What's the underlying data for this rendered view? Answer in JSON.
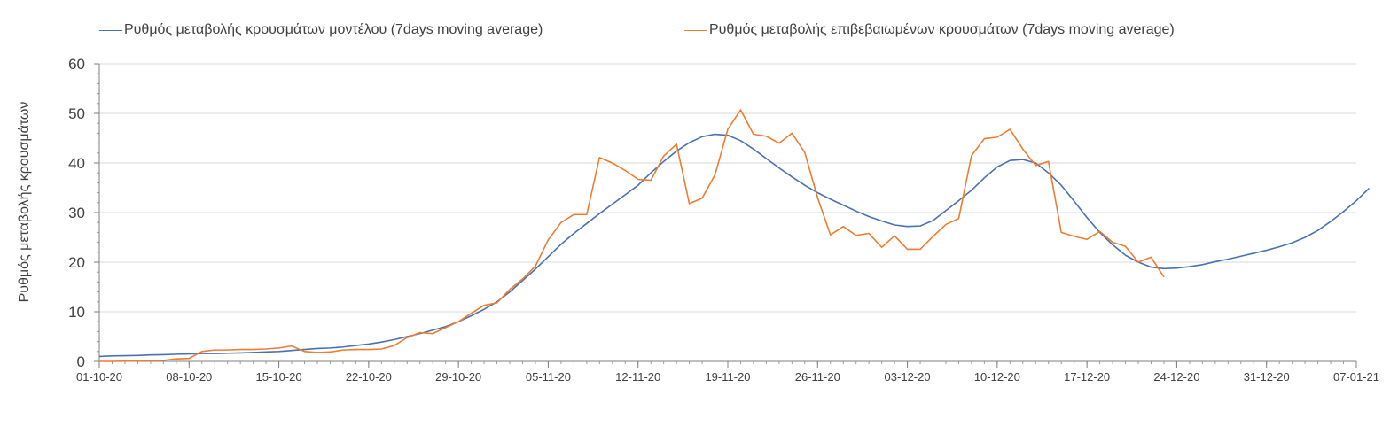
{
  "chart_data": {
    "type": "line",
    "ylabel": "Ρυθμός μεταβολής κρουσμάτων",
    "xlabel": "",
    "ylim": [
      0,
      60
    ],
    "yticks": [
      0,
      10,
      20,
      30,
      40,
      50,
      60
    ],
    "xlim": [
      0,
      98
    ],
    "xticks": [
      {
        "x": 0,
        "label": "01-10-20"
      },
      {
        "x": 7,
        "label": "08-10-20"
      },
      {
        "x": 14,
        "label": "15-10-20"
      },
      {
        "x": 21,
        "label": "22-10-20"
      },
      {
        "x": 28,
        "label": "29-10-20"
      },
      {
        "x": 35,
        "label": "05-11-20"
      },
      {
        "x": 42,
        "label": "12-11-20"
      },
      {
        "x": 49,
        "label": "19-11-20"
      },
      {
        "x": 56,
        "label": "26-11-20"
      },
      {
        "x": 63,
        "label": "03-12-20"
      },
      {
        "x": 70,
        "label": "10-12-20"
      },
      {
        "x": 77,
        "label": "17-12-20"
      },
      {
        "x": 84,
        "label": "24-12-20"
      },
      {
        "x": 91,
        "label": "31-12-20"
      },
      {
        "x": 98,
        "label": "07-01-21"
      }
    ],
    "grid": "horizontal",
    "legend_position": "top",
    "series": [
      {
        "name": "Ρυθμός μεταβολής κρουσμάτων μοντέλου (7days moving average)",
        "color": "#4a72b0",
        "points": [
          [
            0,
            1.0
          ],
          [
            1,
            1.1
          ],
          [
            2,
            1.15
          ],
          [
            3,
            1.2
          ],
          [
            4,
            1.3
          ],
          [
            5,
            1.35
          ],
          [
            6,
            1.45
          ],
          [
            7,
            1.5
          ],
          [
            8,
            1.6
          ],
          [
            9,
            1.6
          ],
          [
            10,
            1.65
          ],
          [
            11,
            1.7
          ],
          [
            12,
            1.8
          ],
          [
            13,
            1.9
          ],
          [
            14,
            2.0
          ],
          [
            15,
            2.2
          ],
          [
            16,
            2.4
          ],
          [
            17,
            2.6
          ],
          [
            18,
            2.7
          ],
          [
            19,
            2.9
          ],
          [
            20,
            3.2
          ],
          [
            21,
            3.5
          ],
          [
            22,
            3.9
          ],
          [
            23,
            4.4
          ],
          [
            24,
            5.0
          ],
          [
            25,
            5.6
          ],
          [
            26,
            6.3
          ],
          [
            27,
            7.0
          ],
          [
            28,
            8.0
          ],
          [
            29,
            9.2
          ],
          [
            30,
            10.5
          ],
          [
            31,
            12.0
          ],
          [
            32,
            14.0
          ],
          [
            33,
            16.3
          ],
          [
            34,
            18.6
          ],
          [
            35,
            21.1
          ],
          [
            36,
            23.6
          ],
          [
            37,
            25.8
          ],
          [
            38,
            27.8
          ],
          [
            39,
            29.8
          ],
          [
            40,
            31.7
          ],
          [
            41,
            33.6
          ],
          [
            42,
            35.5
          ],
          [
            43,
            38.0
          ],
          [
            44,
            40.3
          ],
          [
            45,
            42.4
          ],
          [
            46,
            44.1
          ],
          [
            47,
            45.3
          ],
          [
            48,
            45.8
          ],
          [
            49,
            45.6
          ],
          [
            50,
            44.5
          ],
          [
            51,
            42.8
          ],
          [
            52,
            40.9
          ],
          [
            53,
            39.0
          ],
          [
            54,
            37.2
          ],
          [
            55,
            35.5
          ],
          [
            56,
            34.0
          ],
          [
            57,
            32.7
          ],
          [
            58,
            31.5
          ],
          [
            59,
            30.3
          ],
          [
            60,
            29.2
          ],
          [
            61,
            28.3
          ],
          [
            62,
            27.5
          ],
          [
            63,
            27.2
          ],
          [
            64,
            27.3
          ],
          [
            65,
            28.4
          ],
          [
            66,
            30.4
          ],
          [
            67,
            32.4
          ],
          [
            68,
            34.5
          ],
          [
            69,
            37.0
          ],
          [
            70,
            39.2
          ],
          [
            71,
            40.5
          ],
          [
            72,
            40.7
          ],
          [
            73,
            40.0
          ],
          [
            74,
            38.0
          ],
          [
            75,
            35.5
          ],
          [
            76,
            32.3
          ],
          [
            77,
            29.0
          ],
          [
            78,
            26.0
          ],
          [
            79,
            23.5
          ],
          [
            80,
            21.4
          ],
          [
            81,
            20.0
          ],
          [
            82,
            19.0
          ],
          [
            83,
            18.7
          ],
          [
            84,
            18.8
          ],
          [
            85,
            19.1
          ],
          [
            86,
            19.5
          ],
          [
            87,
            20.1
          ],
          [
            88,
            20.6
          ],
          [
            89,
            21.2
          ],
          [
            90,
            21.8
          ],
          [
            91,
            22.4
          ],
          [
            92,
            23.1
          ],
          [
            93,
            23.9
          ],
          [
            94,
            25.0
          ],
          [
            95,
            26.4
          ],
          [
            96,
            28.2
          ],
          [
            97,
            30.2
          ],
          [
            98,
            32.4
          ],
          [
            99,
            34.9
          ]
        ]
      },
      {
        "name": "Ρυθμός μεταβολής επιβεβαιωμένων κρουσμάτων (7days moving average)",
        "color": "#ed7d31",
        "points": [
          [
            0,
            0.0
          ],
          [
            1,
            0.0
          ],
          [
            2,
            0.05
          ],
          [
            3,
            0.1
          ],
          [
            4,
            0.1
          ],
          [
            5,
            0.2
          ],
          [
            6,
            0.5
          ],
          [
            7,
            0.6
          ],
          [
            8,
            2.0
          ],
          [
            9,
            2.3
          ],
          [
            10,
            2.3
          ],
          [
            11,
            2.4
          ],
          [
            12,
            2.4
          ],
          [
            13,
            2.5
          ],
          [
            14,
            2.7
          ],
          [
            15,
            3.1
          ],
          [
            16,
            2.0
          ],
          [
            17,
            1.8
          ],
          [
            18,
            1.9
          ],
          [
            19,
            2.3
          ],
          [
            20,
            2.4
          ],
          [
            21,
            2.4
          ],
          [
            22,
            2.5
          ],
          [
            23,
            3.2
          ],
          [
            24,
            4.8
          ],
          [
            25,
            5.8
          ],
          [
            26,
            5.6
          ],
          [
            27,
            6.8
          ],
          [
            28,
            8.0
          ],
          [
            29,
            9.7
          ],
          [
            30,
            11.3
          ],
          [
            31,
            11.8
          ],
          [
            32,
            14.5
          ],
          [
            33,
            16.6
          ],
          [
            34,
            19.2
          ],
          [
            35,
            24.5
          ],
          [
            36,
            28.0
          ],
          [
            37,
            29.6
          ],
          [
            38,
            29.6
          ],
          [
            39,
            41.1
          ],
          [
            40,
            40.0
          ],
          [
            41,
            38.5
          ],
          [
            42,
            36.7
          ],
          [
            43,
            36.5
          ],
          [
            44,
            41.4
          ],
          [
            45,
            43.8
          ],
          [
            46,
            31.8
          ],
          [
            47,
            32.9
          ],
          [
            48,
            37.6
          ],
          [
            49,
            46.8
          ],
          [
            50,
            50.7
          ],
          [
            51,
            45.8
          ],
          [
            52,
            45.4
          ],
          [
            53,
            44.0
          ],
          [
            54,
            46.0
          ],
          [
            55,
            42.1
          ],
          [
            56,
            33.0
          ],
          [
            57,
            25.5
          ],
          [
            58,
            27.2
          ],
          [
            59,
            25.4
          ],
          [
            60,
            25.8
          ],
          [
            61,
            23.0
          ],
          [
            62,
            25.3
          ],
          [
            63,
            22.6
          ],
          [
            64,
            22.6
          ],
          [
            65,
            25.2
          ],
          [
            66,
            27.6
          ],
          [
            67,
            28.8
          ],
          [
            68,
            41.5
          ],
          [
            69,
            44.9
          ],
          [
            70,
            45.2
          ],
          [
            71,
            46.8
          ],
          [
            72,
            42.8
          ],
          [
            73,
            39.5
          ],
          [
            74,
            40.3
          ],
          [
            75,
            26.0
          ],
          [
            76,
            25.2
          ],
          [
            77,
            24.6
          ],
          [
            78,
            26.2
          ],
          [
            79,
            24.0
          ],
          [
            80,
            23.2
          ],
          [
            81,
            20.0
          ],
          [
            82,
            21.0
          ],
          [
            83,
            17.0
          ]
        ]
      }
    ]
  }
}
